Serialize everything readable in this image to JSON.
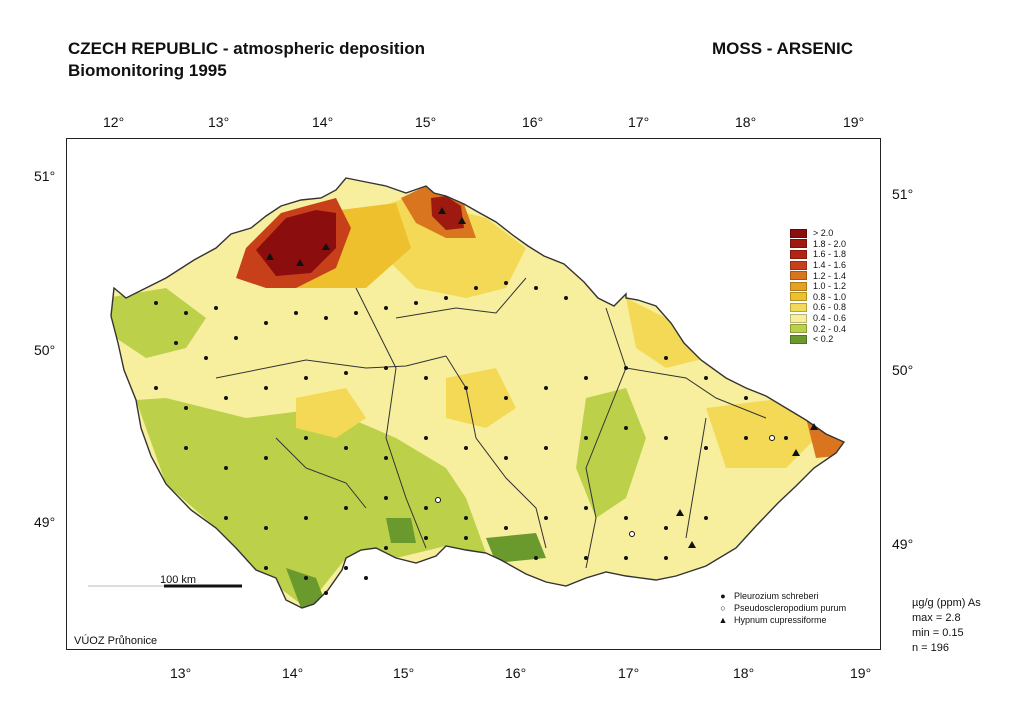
{
  "header": {
    "title_line1": "CZECH REPUBLIC - atmospheric deposition",
    "title_line2": "Biomonitoring 1995",
    "title_right": "MOSS - ARSENIC"
  },
  "graticule": {
    "longitude_labels": [
      "12°",
      "13°",
      "14°",
      "15°",
      "16°",
      "17°",
      "18°",
      "19°"
    ],
    "longitude_labels_bottom": [
      "13°",
      "14°",
      "15°",
      "16°",
      "17°",
      "18°",
      "19°"
    ],
    "latitude_labels_left": [
      "51°",
      "50°",
      "49°"
    ],
    "latitude_labels_right": [
      "51°",
      "50°",
      "49°"
    ]
  },
  "legend": {
    "items": [
      {
        "label": ">   2.0",
        "color": "#8b0d0d"
      },
      {
        "label": "1.8 - 2.0",
        "color": "#9e1a10"
      },
      {
        "label": "1.6 - 1.8",
        "color": "#b22514"
      },
      {
        "label": "1.4 - 1.6",
        "color": "#c8401a"
      },
      {
        "label": "1.2 - 1.4",
        "color": "#d9741f"
      },
      {
        "label": "1.0 - 1.2",
        "color": "#e5a126"
      },
      {
        "label": "0.8 - 1.0",
        "color": "#eec02e"
      },
      {
        "label": "0.6 - 0.8",
        "color": "#f3d955"
      },
      {
        "label": "0.4 - 0.6",
        "color": "#f7ef9e"
      },
      {
        "label": "0.2 - 0.4",
        "color": "#bcd04a"
      },
      {
        "label": "<   0.2",
        "color": "#6a9a2e"
      }
    ]
  },
  "species": [
    {
      "symbol": "●",
      "label": "Pleurozium schreberi"
    },
    {
      "symbol": "○",
      "label": "Pseudoscleropodium purum"
    },
    {
      "symbol": "▲",
      "label": "Hypnum cupressiforme"
    }
  ],
  "stats": {
    "unit": "µg/g (ppm) As",
    "max": "max = 2.8",
    "min": "min = 0.15",
    "n": "n = 196"
  },
  "scale_bar": {
    "label": "100 km"
  },
  "credit": "VÚOZ Průhonice"
}
